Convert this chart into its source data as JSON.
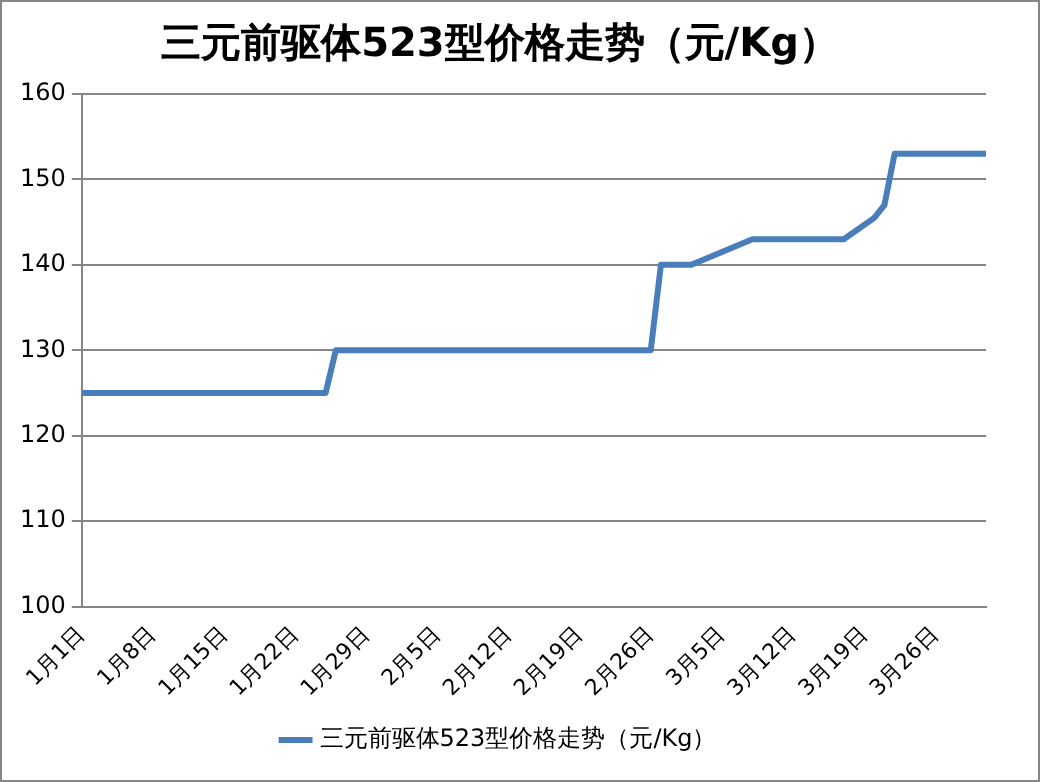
{
  "chart_data": {
    "type": "line",
    "title": "三元前驱体523型价格走势（元/Kg）",
    "x": [
      "--01-01",
      "--01-25",
      "--01-26",
      "--02-26",
      "--02-27",
      "--03-02",
      "--03-08",
      "--03-17",
      "--03-20",
      "--03-21",
      "--03-22",
      "--03-31"
    ],
    "series": [
      {
        "name": "三元前驱体523型价格走势（元/Kg）",
        "color": "#4a7ebb",
        "values": [
          125,
          125,
          130,
          130,
          140,
          140,
          143,
          143,
          145.5,
          147,
          153,
          153
        ]
      }
    ],
    "xlim": [
      "--01-01",
      "--03-31"
    ],
    "xticks": [
      {
        "value": "--01-01",
        "label": "1月1日"
      },
      {
        "value": "--01-08",
        "label": "1月8日"
      },
      {
        "value": "--01-15",
        "label": "1月15日"
      },
      {
        "value": "--01-22",
        "label": "1月22日"
      },
      {
        "value": "--01-29",
        "label": "1月29日"
      },
      {
        "value": "--02-05",
        "label": "2月5日"
      },
      {
        "value": "--02-12",
        "label": "2月12日"
      },
      {
        "value": "--02-19",
        "label": "2月19日"
      },
      {
        "value": "--02-26",
        "label": "2月26日"
      },
      {
        "value": "--03-05",
        "label": "3月5日"
      },
      {
        "value": "--03-12",
        "label": "3月12日"
      },
      {
        "value": "--03-19",
        "label": "3月19日"
      },
      {
        "value": "--03-26",
        "label": "3月26日"
      }
    ],
    "ylim": [
      100,
      160
    ],
    "yticks": [
      100,
      110,
      120,
      130,
      140,
      150,
      160
    ],
    "grid": "y",
    "legend": "bottom",
    "marker": "none",
    "line_style": "solid"
  }
}
